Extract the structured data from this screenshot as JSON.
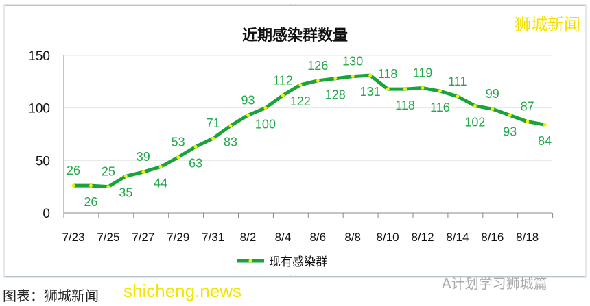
{
  "brand": "狮城新闻",
  "source": "图表：狮城新闻",
  "watermark": "shicheng.news",
  "wechat": "A计划学习狮城篇",
  "colors": {
    "line": "#1aa33a",
    "marker": "#f3f300",
    "label": "#22a84a"
  },
  "chart_data": {
    "type": "line",
    "title": "近期感染群数量",
    "xlabel": "",
    "ylabel": "",
    "ylim": [
      0,
      150
    ],
    "yticks": [
      0,
      50,
      100,
      150
    ],
    "grid": true,
    "legend": "bottom",
    "x": [
      "7/23",
      "7/24",
      "7/25",
      "7/26",
      "7/27",
      "7/28",
      "7/29",
      "7/30",
      "7/31",
      "8/1",
      "8/2",
      "8/3",
      "8/4",
      "8/5",
      "8/6",
      "8/7",
      "8/8",
      "8/9",
      "8/10",
      "8/11",
      "8/12",
      "8/13",
      "8/14",
      "8/15",
      "8/16",
      "8/17",
      "8/18",
      "8/19"
    ],
    "xticklabels": [
      "7/23",
      "7/25",
      "7/27",
      "7/29",
      "7/31",
      "8/2",
      "8/4",
      "8/6",
      "8/8",
      "8/10",
      "8/12",
      "8/14",
      "8/16",
      "8/18"
    ],
    "series": [
      {
        "name": "现有感染群",
        "values": [
          26,
          26,
          25,
          35,
          39,
          44,
          53,
          63,
          71,
          83,
          93,
          100,
          112,
          122,
          126,
          128,
          130,
          131,
          118,
          118,
          119,
          116,
          111,
          102,
          99,
          93,
          87,
          84
        ]
      }
    ]
  }
}
